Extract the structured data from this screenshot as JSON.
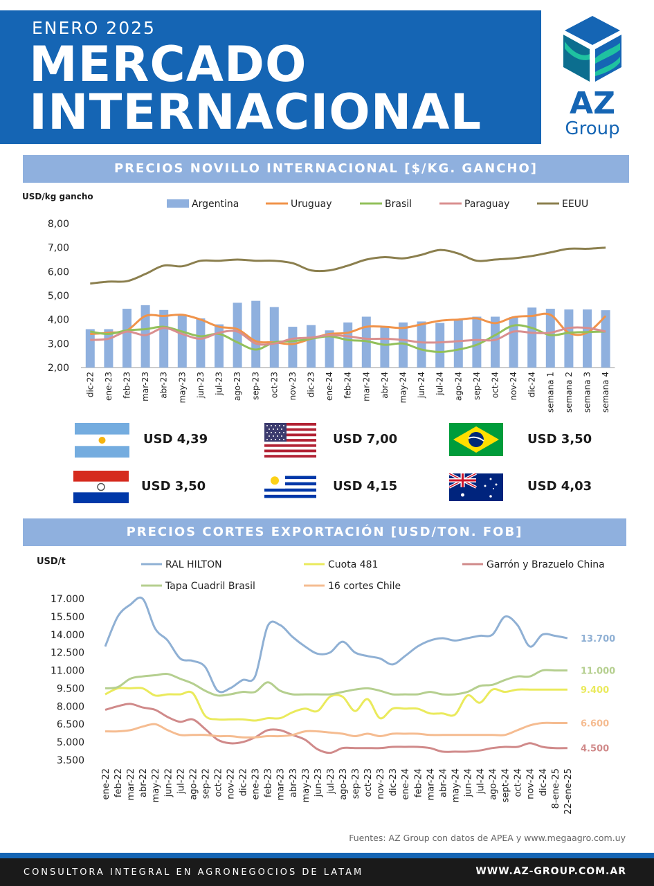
{
  "header": {
    "subtitle": "ENERO 2025",
    "title_line1": "MERCADO",
    "title_line2": "INTERNACIONAL",
    "logo_text": "AZ",
    "logo_subtext": "Group",
    "brand_color": "#1565b4"
  },
  "section1": {
    "title": "PRECIOS NOVILLO INTERNACIONAL [$/KG. GANCHO]",
    "unit_label": "USD/kg gancho"
  },
  "chart_data": [
    {
      "type": "bar",
      "ylim": [
        2,
        8
      ],
      "yticks": [
        "2,00",
        "3,00",
        "4,00",
        "5,00",
        "6,00",
        "7,00",
        "8,00"
      ],
      "grid": false,
      "legend": "top",
      "categories": [
        "dic-22",
        "ene-23",
        "feb-23",
        "mar-23",
        "abr-23",
        "may-23",
        "jun-23",
        "jul-23",
        "ago-23",
        "sep-23",
        "oct-23",
        "nov-23",
        "dic-23",
        "ene-24",
        "feb-24",
        "mar-24",
        "abr-24",
        "may-24",
        "jun-24",
        "jul-24",
        "ago-24",
        "sep-24",
        "oct-24",
        "nov-24",
        "dic-24",
        "semana 1",
        "semana 2",
        "semana 3",
        "semana 4"
      ],
      "series": [
        {
          "name": "Argentina",
          "kind": "bar",
          "color": "#8fb0de",
          "values": [
            3.6,
            3.6,
            4.45,
            4.6,
            4.4,
            4.2,
            4.05,
            3.8,
            4.7,
            4.78,
            4.52,
            3.7,
            3.77,
            3.55,
            3.88,
            4.12,
            3.7,
            3.88,
            3.92,
            3.86,
            4.02,
            4.12,
            4.12,
            4.1,
            4.5,
            4.45,
            4.42,
            4.42,
            4.39
          ]
        },
        {
          "name": "Uruguay",
          "kind": "line",
          "color": "#f0934a",
          "values": [
            3.4,
            3.45,
            3.55,
            4.15,
            4.15,
            4.2,
            4.0,
            3.7,
            3.6,
            3.1,
            3.05,
            2.98,
            3.2,
            3.4,
            3.45,
            3.7,
            3.7,
            3.65,
            3.8,
            3.95,
            4.0,
            4.05,
            3.85,
            4.1,
            4.15,
            4.2,
            3.45,
            3.45,
            4.15
          ]
        },
        {
          "name": "Brasil",
          "kind": "line",
          "color": "#92c05a",
          "values": [
            3.5,
            3.4,
            3.55,
            3.6,
            3.7,
            3.5,
            3.3,
            3.4,
            3.05,
            2.75,
            3.05,
            3.1,
            3.2,
            3.3,
            3.15,
            3.1,
            2.95,
            3.0,
            2.75,
            2.65,
            2.75,
            2.95,
            3.35,
            3.75,
            3.65,
            3.35,
            3.45,
            3.48,
            3.5
          ]
        },
        {
          "name": "Paraguay",
          "kind": "line",
          "color": "#d98f8f",
          "values": [
            3.15,
            3.2,
            3.5,
            3.35,
            3.65,
            3.4,
            3.2,
            3.45,
            3.5,
            3.0,
            3.0,
            3.2,
            3.25,
            3.35,
            3.3,
            3.2,
            3.2,
            3.15,
            3.05,
            3.05,
            3.1,
            3.15,
            3.15,
            3.5,
            3.45,
            3.45,
            3.65,
            3.65,
            3.5
          ]
        },
        {
          "name": "EEUU",
          "kind": "line",
          "color": "#8b7f4e",
          "values": [
            5.5,
            5.58,
            5.6,
            5.9,
            6.25,
            6.22,
            6.45,
            6.45,
            6.5,
            6.45,
            6.45,
            6.35,
            6.05,
            6.05,
            6.25,
            6.5,
            6.6,
            6.55,
            6.7,
            6.9,
            6.75,
            6.45,
            6.5,
            6.55,
            6.65,
            6.8,
            6.95,
            6.95,
            7.0
          ]
        }
      ]
    },
    {
      "type": "line",
      "ylim": [
        3500,
        17000
      ],
      "yticks": [
        "3.500",
        "5.000",
        "6.500",
        "8.000",
        "9.500",
        "11.000",
        "12.500",
        "14.000",
        "15.500",
        "17.000"
      ],
      "grid": false,
      "legend": "top",
      "categories": [
        "ene-22",
        "feb-22",
        "mar-22",
        "abr-22",
        "may-22",
        "jun-22",
        "jul-22",
        "ago-22",
        "sep-22",
        "oct-22",
        "nov-22",
        "dic-22",
        "ene-23",
        "feb-23",
        "mar-23",
        "abr-23",
        "may-23",
        "jun-23",
        "jul-23",
        "ago-23",
        "sep-23",
        "oct-23",
        "nov-23",
        "dic-23",
        "ene-24",
        "feb-24",
        "mar-24",
        "abr-24",
        "may-24",
        "jun-24",
        "jul-24",
        "ago-24",
        "sept-24",
        "oct-24",
        "nov-24",
        "dic-24",
        "8-ene-25",
        "22-ene-25"
      ],
      "series": [
        {
          "name": "RAL HILTON",
          "color": "#8fb0d4",
          "end_label": "13.700",
          "values": [
            13000,
            15500,
            16500,
            17000,
            14500,
            13500,
            12000,
            11800,
            11300,
            9300,
            9500,
            10200,
            10500,
            14700,
            14800,
            13800,
            13000,
            12400,
            12500,
            13400,
            12500,
            12200,
            12000,
            11500,
            12200,
            13000,
            13500,
            13700,
            13500,
            13700,
            13900,
            14000,
            15500,
            14800,
            13000,
            14000,
            13900,
            13700
          ]
        },
        {
          "name": "Cuota 481",
          "color": "#eaea5c",
          "end_label": "9.400",
          "values": [
            9000,
            9500,
            9500,
            9500,
            8900,
            9000,
            9000,
            9100,
            7200,
            6900,
            6900,
            6900,
            6800,
            7000,
            7000,
            7500,
            7800,
            7600,
            8800,
            8800,
            7600,
            8600,
            7000,
            7800,
            7800,
            7800,
            7400,
            7400,
            7300,
            8900,
            8300,
            9400,
            9200,
            9400,
            9400,
            9400,
            9400,
            9400
          ]
        },
        {
          "name": "Garrón y Brazuelo China",
          "color": "#d08a8a",
          "end_label": "4.500",
          "values": [
            7700,
            8000,
            8200,
            7900,
            7700,
            7100,
            6700,
            6900,
            6100,
            5200,
            4900,
            5000,
            5400,
            6000,
            6000,
            5600,
            5200,
            4400,
            4100,
            4500,
            4500,
            4500,
            4500,
            4600,
            4600,
            4600,
            4500,
            4200,
            4200,
            4200,
            4300,
            4500,
            4600,
            4600,
            4900,
            4600,
            4500,
            4500
          ]
        },
        {
          "name": "Tapa Cuadril Brasil",
          "color": "#b5cf8f",
          "end_label": "11.000",
          "values": [
            9500,
            9600,
            10300,
            10500,
            10600,
            10700,
            10300,
            9900,
            9300,
            8900,
            9000,
            9200,
            9200,
            10000,
            9300,
            9000,
            9000,
            9000,
            9000,
            9200,
            9400,
            9500,
            9300,
            9000,
            9000,
            9000,
            9200,
            9000,
            9000,
            9200,
            9700,
            9800,
            10200,
            10500,
            10500,
            11000,
            11000,
            11000
          ]
        },
        {
          "name": "16 cortes Chile",
          "color": "#f5bc91",
          "end_label": "6.600",
          "values": [
            5900,
            5900,
            6000,
            6300,
            6500,
            6000,
            5600,
            5600,
            5600,
            5500,
            5500,
            5400,
            5400,
            5500,
            5500,
            5600,
            5900,
            5900,
            5800,
            5700,
            5500,
            5700,
            5500,
            5700,
            5700,
            5700,
            5600,
            5600,
            5600,
            5600,
            5600,
            5600,
            5600,
            6000,
            6400,
            6600,
            6600,
            6600
          ]
        }
      ]
    }
  ],
  "prices": [
    {
      "country": "Argentina",
      "flag": "argentina-flag",
      "value": "USD 4,39"
    },
    {
      "country": "EEUU",
      "flag": "usa-flag",
      "value": "USD 7,00"
    },
    {
      "country": "Brasil",
      "flag": "brazil-flag",
      "value": "USD 3,50"
    },
    {
      "country": "Paraguay",
      "flag": "paraguay-flag",
      "value": "USD 3,50"
    },
    {
      "country": "Uruguay",
      "flag": "uruguay-flag",
      "value": "USD 4,15"
    },
    {
      "country": "Australia",
      "flag": "australia-flag",
      "value": "USD 4,03"
    }
  ],
  "section2": {
    "title": "PRECIOS CORTES EXPORTACIÓN [USD/TON. FOB]",
    "unit_label": "USD/t"
  },
  "source": "Fuentes: AZ Group con datos de APEA y www.megaagro.com.uy",
  "footer": {
    "left": "CONSULTORA INTEGRAL EN AGRONEGOCIOS DE LATAM",
    "right": "WWW.AZ-GROUP.COM.AR"
  }
}
